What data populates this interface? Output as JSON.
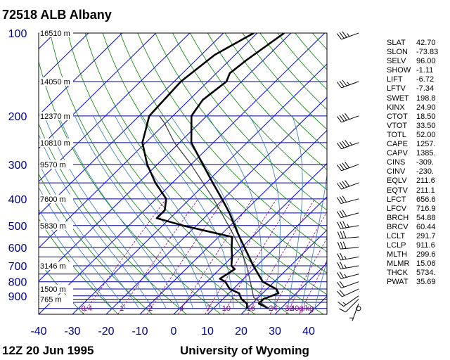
{
  "header": {
    "title": "72518 ALB Albany"
  },
  "footer": {
    "time": "12Z 20 Jun 1995",
    "source": "University of Wyoming"
  },
  "stats": [
    {
      "label": "SLAT",
      "value": "42.70"
    },
    {
      "label": "SLON",
      "value": "-73.83"
    },
    {
      "label": "SELV",
      "value": "96.00"
    },
    {
      "label": "SHOW",
      "value": "-1.11"
    },
    {
      "label": "LIFT",
      "value": "-6.72"
    },
    {
      "label": "LFTV",
      "value": "-7.34"
    },
    {
      "label": "SWET",
      "value": "198.8"
    },
    {
      "label": "KINX",
      "value": "24.90"
    },
    {
      "label": "CTOT",
      "value": "18.50"
    },
    {
      "label": "VTOT",
      "value": "33.50"
    },
    {
      "label": "TOTL",
      "value": "52.00"
    },
    {
      "label": "CAPE",
      "value": "1257."
    },
    {
      "label": "CAPV",
      "value": "1385."
    },
    {
      "label": "CINS",
      "value": "-309."
    },
    {
      "label": "CINV",
      "value": "-230."
    },
    {
      "label": "EQLV",
      "value": "211.6"
    },
    {
      "label": "EQTV",
      "value": "211.1"
    },
    {
      "label": "LFCT",
      "value": "656.6"
    },
    {
      "label": "LFCV",
      "value": "716.9"
    },
    {
      "label": "BRCH",
      "value": "54.88"
    },
    {
      "label": "BRCV",
      "value": "60.44"
    },
    {
      "label": "LCLT",
      "value": "291.7"
    },
    {
      "label": "LCLP",
      "value": "911.6"
    },
    {
      "label": "MLTH",
      "value": "299.6"
    },
    {
      "label": "MLMR",
      "value": "15.06"
    },
    {
      "label": "THCK",
      "value": "5734."
    },
    {
      "label": "PWAT",
      "value": "35.69"
    }
  ],
  "chart_data": {
    "type": "line",
    "chart_kind": "skew-T log-P diagram",
    "y_scale": "log",
    "ylim": [
      1050,
      100
    ],
    "xlim": [
      -40,
      45
    ],
    "colors": {
      "isobar": "#00008b",
      "isotherm": "#0000ff",
      "dry_adiabat": "#008000",
      "moist_adiabat": "#2f79b8",
      "mixing_ratio": "#8b008b",
      "profile": "#000000"
    },
    "pressure_ticks": [
      "100",
      "200",
      "300",
      "400",
      "500",
      "600",
      "700",
      "800",
      "900"
    ],
    "temperature_ticks": [
      "-40",
      "-30",
      "-20",
      "-10",
      "0",
      "10",
      "20",
      "30",
      "40"
    ],
    "height_labels": [
      {
        "p": 100,
        "text": "16510 m"
      },
      {
        "p": 150,
        "text": "14050 m"
      },
      {
        "p": 200,
        "text": "12370 m"
      },
      {
        "p": 250,
        "text": "10810 m"
      },
      {
        "p": 300,
        "text": "9570 m"
      },
      {
        "p": 400,
        "text": "7600 m"
      },
      {
        "p": 500,
        "text": "5830 m"
      },
      {
        "p": 700,
        "text": "3146 m"
      },
      {
        "p": 850,
        "text": "1500 m"
      },
      {
        "p": 925,
        "text": "765 m"
      }
    ],
    "mixing_ratio_labels": [
      "0.4",
      "1",
      "2",
      "4",
      "7",
      "10",
      "16",
      "24",
      "32",
      "40g/kg"
    ],
    "mixing_ratio_values": [
      0.4,
      1,
      2,
      4,
      7,
      10,
      16,
      24,
      32,
      40
    ],
    "series": [
      {
        "role": "temperature",
        "points": [
          {
            "p": 1000,
            "t": 26.4
          },
          {
            "p": 960,
            "t": 22.0
          },
          {
            "p": 925,
            "t": 22.0
          },
          {
            "p": 880,
            "t": 24.7
          },
          {
            "p": 850,
            "t": 22.8
          },
          {
            "p": 800,
            "t": 16.6
          },
          {
            "p": 700,
            "t": 9.0
          },
          {
            "p": 600,
            "t": 0.8
          },
          {
            "p": 550,
            "t": -3.8
          },
          {
            "p": 500,
            "t": -8.7
          },
          {
            "p": 450,
            "t": -14.0
          },
          {
            "p": 400,
            "t": -20.5
          },
          {
            "p": 350,
            "t": -28.0
          },
          {
            "p": 300,
            "t": -36.5
          },
          {
            "p": 250,
            "t": -46.5
          },
          {
            "p": 200,
            "t": -54.5
          },
          {
            "p": 175,
            "t": -56.0
          },
          {
            "p": 150,
            "t": -54.5
          },
          {
            "p": 140,
            "t": -56.0
          },
          {
            "p": 125,
            "t": -55.0
          },
          {
            "p": 100,
            "t": -52.0
          }
        ]
      },
      {
        "role": "dewpoint",
        "points": [
          {
            "p": 1000,
            "t": 20.0
          },
          {
            "p": 960,
            "t": 18.5
          },
          {
            "p": 925,
            "t": 15.5
          },
          {
            "p": 880,
            "t": 13.0
          },
          {
            "p": 850,
            "t": 9.0
          },
          {
            "p": 800,
            "t": 5.5
          },
          {
            "p": 780,
            "t": 3.0
          },
          {
            "p": 720,
            "t": 4.5
          },
          {
            "p": 700,
            "t": 2.5
          },
          {
            "p": 650,
            "t": 0.0
          },
          {
            "p": 600,
            "t": -3.0
          },
          {
            "p": 550,
            "t": -6.0
          },
          {
            "p": 500,
            "t": -24.0
          },
          {
            "p": 470,
            "t": -34.0
          },
          {
            "p": 440,
            "t": -34.0
          },
          {
            "p": 400,
            "t": -37.0
          },
          {
            "p": 350,
            "t": -45.0
          },
          {
            "p": 300,
            "t": -53.0
          },
          {
            "p": 250,
            "t": -61.0
          },
          {
            "p": 200,
            "t": -67.0
          },
          {
            "p": 150,
            "t": -68.0
          },
          {
            "p": 120,
            "t": -66.0
          },
          {
            "p": 100,
            "t": -61.0
          }
        ]
      },
      {
        "role": "parcel",
        "points": [
          {
            "p": 1000,
            "t": 26.4
          },
          {
            "p": 911.6,
            "t": 18.6
          },
          {
            "p": 850,
            "t": 15.6
          },
          {
            "p": 700,
            "t": 7.0
          },
          {
            "p": 600,
            "t": -0.5
          },
          {
            "p": 500,
            "t": -10.5
          },
          {
            "p": 400,
            "t": -23.0
          },
          {
            "p": 300,
            "t": -40.0
          },
          {
            "p": 250,
            "t": -51.5
          },
          {
            "p": 211.6,
            "t": -60.5
          },
          {
            "p": 200,
            "t": -64.0
          }
        ]
      }
    ],
    "wind_barbs": [
      {
        "p": 1000,
        "dir": 0,
        "spd": 0
      },
      {
        "p": 960,
        "dir": 200,
        "spd": 5
      },
      {
        "p": 925,
        "dir": 225,
        "spd": 10
      },
      {
        "p": 900,
        "dir": 235,
        "spd": 15
      },
      {
        "p": 850,
        "dir": 245,
        "spd": 20
      },
      {
        "p": 800,
        "dir": 250,
        "spd": 20
      },
      {
        "p": 750,
        "dir": 255,
        "spd": 25
      },
      {
        "p": 700,
        "dir": 260,
        "spd": 25
      },
      {
        "p": 650,
        "dir": 260,
        "spd": 25
      },
      {
        "p": 600,
        "dir": 265,
        "spd": 30
      },
      {
        "p": 550,
        "dir": 265,
        "spd": 30
      },
      {
        "p": 500,
        "dir": 260,
        "spd": 35
      },
      {
        "p": 450,
        "dir": 255,
        "spd": 30
      },
      {
        "p": 400,
        "dir": 255,
        "spd": 30
      },
      {
        "p": 350,
        "dir": 250,
        "spd": 40
      },
      {
        "p": 300,
        "dir": 250,
        "spd": 40
      },
      {
        "p": 250,
        "dir": 250,
        "spd": 45
      },
      {
        "p": 200,
        "dir": 250,
        "spd": 40
      },
      {
        "p": 150,
        "dir": 250,
        "spd": 35
      },
      {
        "p": 100,
        "dir": 250,
        "spd": 35
      }
    ]
  }
}
